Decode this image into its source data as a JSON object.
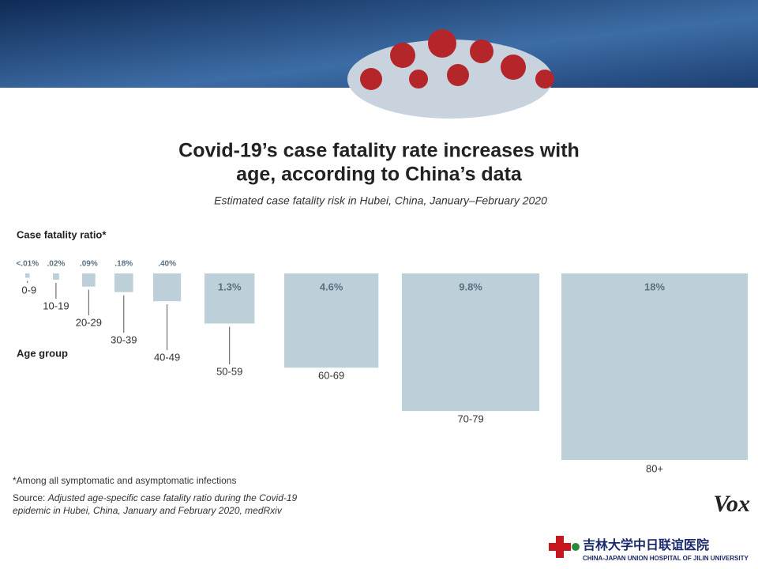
{
  "chart_data": {
    "type": "square",
    "title": [
      "Covid-19’s case fatality rate increases with",
      "age, according to China’s data"
    ],
    "subtitle": "Estimated case fatality risk in Hubei, China, January–February 2020",
    "value_axis_label": "Case fatality ratio*",
    "category_axis_label": "Age group",
    "categories": [
      "0-9",
      "10-19",
      "20-29",
      "30-39",
      "40-49",
      "50-59",
      "60-69",
      "70-79",
      "80+"
    ],
    "values": [
      0.01,
      0.02,
      0.09,
      0.18,
      0.4,
      1.3,
      4.6,
      9.8,
      18
    ],
    "value_labels": [
      "<.01%",
      ".02%",
      ".09%",
      ".18%",
      ".40%",
      "1.3%",
      "4.6%",
      "9.8%",
      "18%"
    ],
    "color": "#bdd0d9",
    "footnote": "*Among all symptomatic and asymptomatic infections",
    "source_label": "Source:",
    "source_text": "Adjusted age-specific case fatality ratio during the Covid-19 epidemic in Hubei, China, January and February 2020, medRxiv",
    "brand": "Vox"
  },
  "footer": {
    "hospital_cn": "吉林大学中日联谊医院",
    "hospital_en": "CHINA-JAPAN UNION HOSPITAL OF JILIN UNIVERSITY"
  }
}
